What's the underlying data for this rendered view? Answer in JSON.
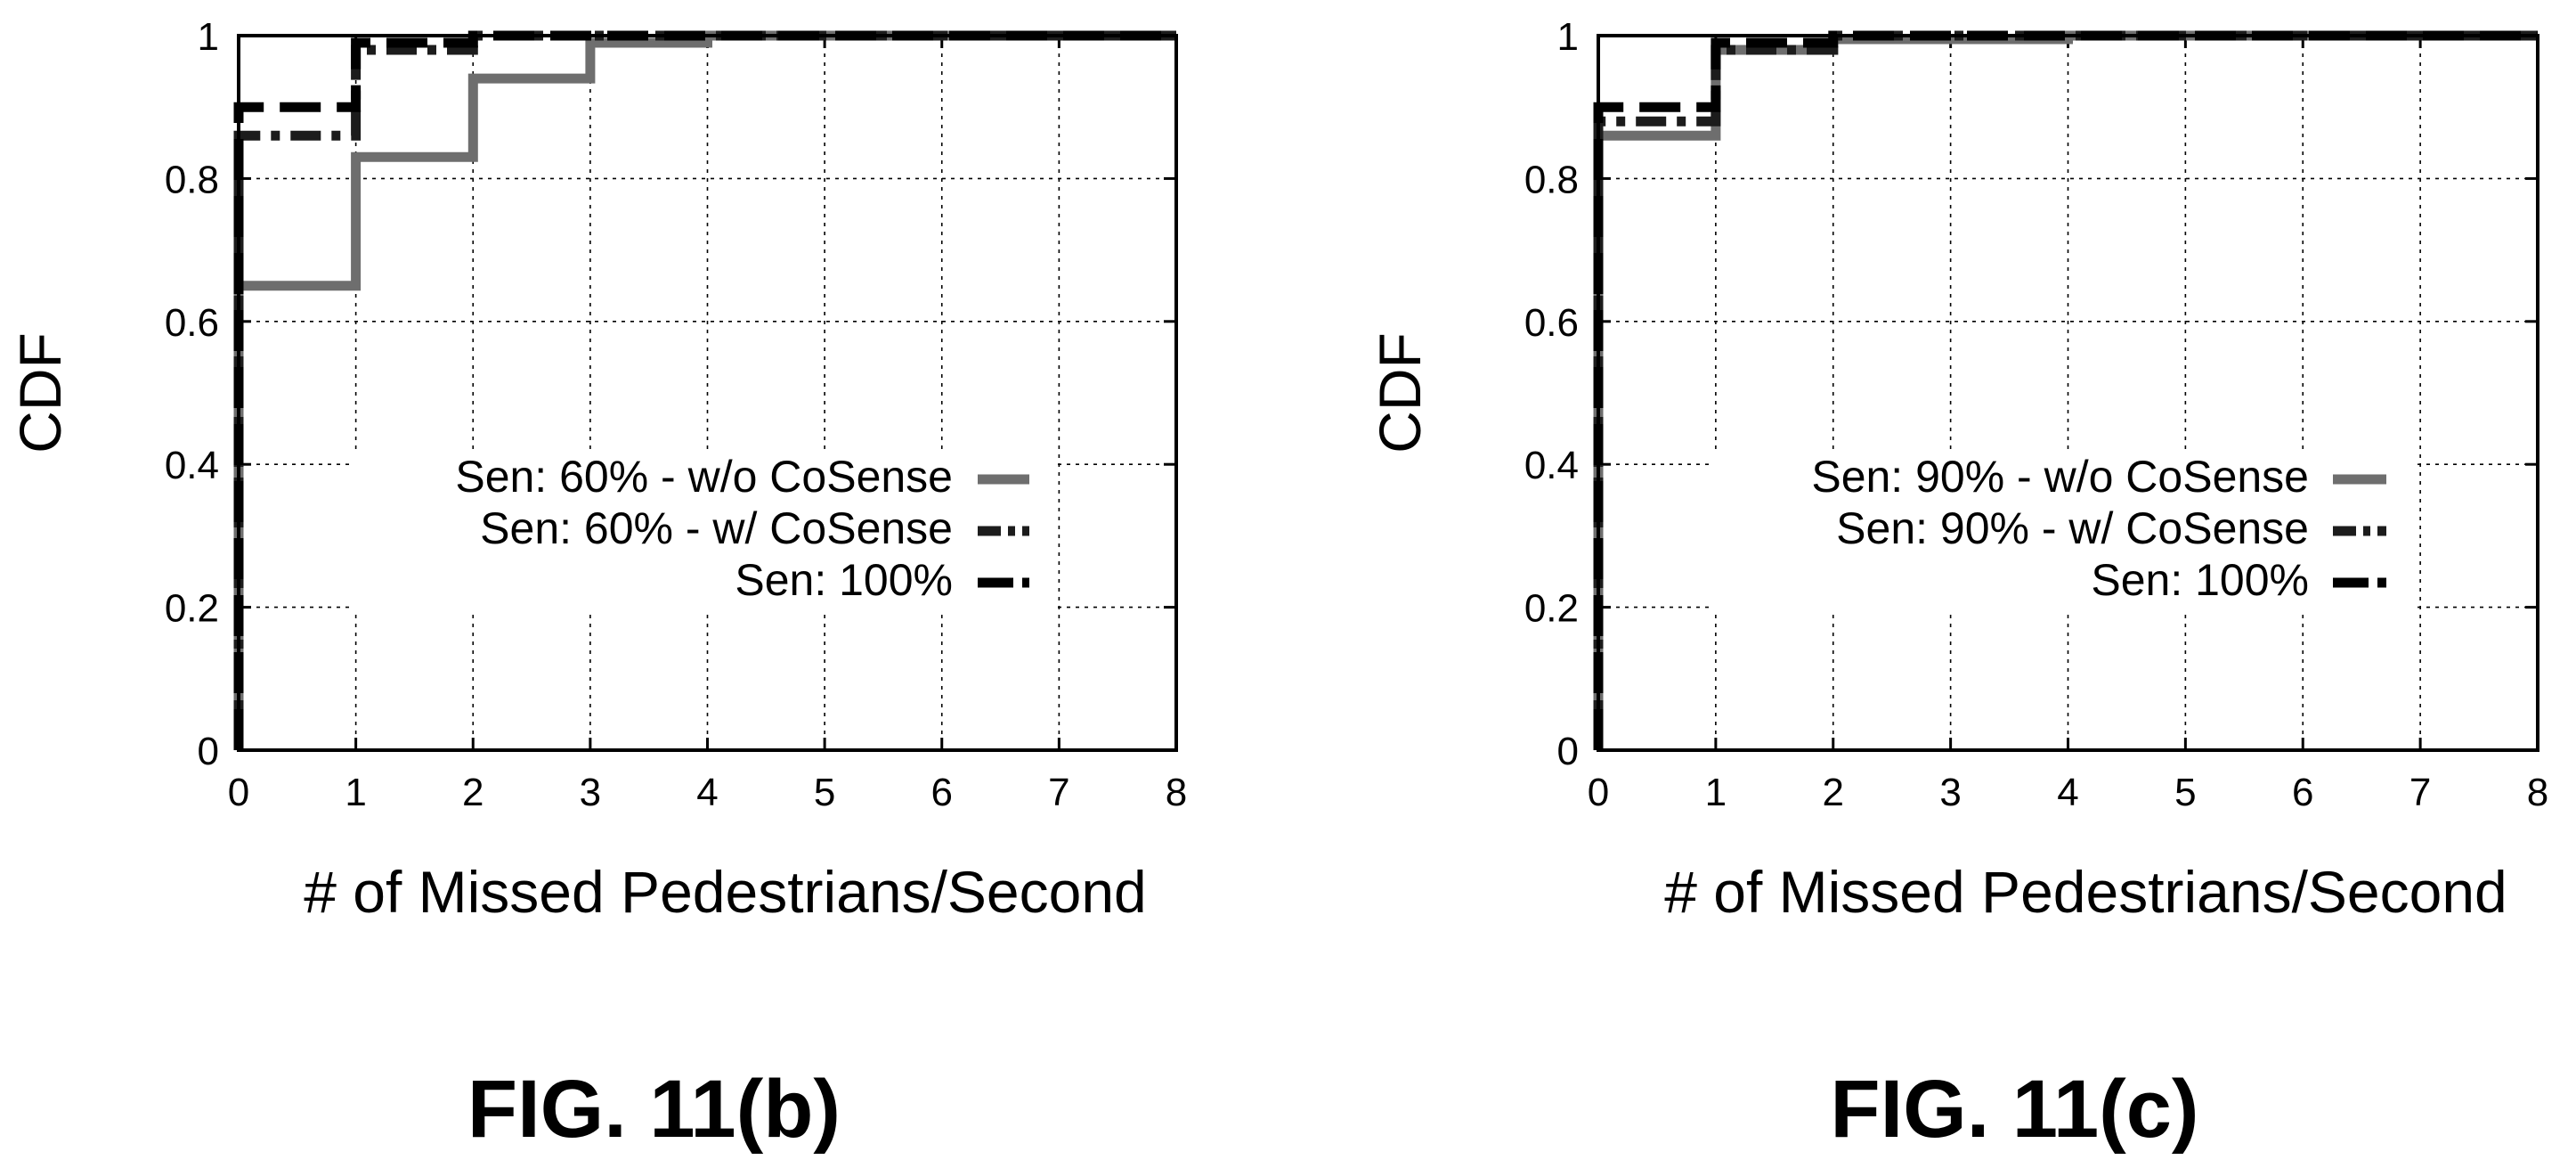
{
  "chart_data": [
    {
      "type": "line",
      "step": true,
      "caption": "FIG. 11(b)",
      "xlabel": "# of Missed Pedestrians/Second",
      "ylabel": "CDF",
      "xlim": [
        0,
        8
      ],
      "ylim": [
        0,
        1
      ],
      "xticks": [
        "0",
        "1",
        "2",
        "3",
        "4",
        "5",
        "6",
        "7",
        "8"
      ],
      "yticks": [
        "0",
        "0.2",
        "0.4",
        "0.6",
        "0.8",
        "1"
      ],
      "grid": true,
      "legend_position": "center-right",
      "series": [
        {
          "name": "Sen: 60% - w/o CoSense",
          "color": "#6e6e6e",
          "dash": "solid",
          "x": [
            0,
            1,
            2,
            3,
            4,
            8
          ],
          "y": [
            0.65,
            0.83,
            0.94,
            0.99,
            1.0,
            1.0
          ]
        },
        {
          "name": "Sen: 60% - w/ CoSense",
          "color": "#1c1c1c",
          "dash": "dashdot",
          "x": [
            0,
            1,
            2,
            8
          ],
          "y": [
            0.86,
            0.98,
            1.0,
            1.0
          ]
        },
        {
          "name": "Sen: 100%",
          "color": "#000000",
          "dash": "dashed",
          "x": [
            0,
            1,
            2,
            8
          ],
          "y": [
            0.9,
            0.99,
            1.0,
            1.0
          ]
        }
      ]
    },
    {
      "type": "line",
      "step": true,
      "caption": "FIG. 11(c)",
      "xlabel": "# of Missed Pedestrians/Second",
      "ylabel": "CDF",
      "xlim": [
        0,
        8
      ],
      "ylim": [
        0,
        1
      ],
      "xticks": [
        "0",
        "1",
        "2",
        "3",
        "4",
        "5",
        "6",
        "7",
        "8"
      ],
      "yticks": [
        "0",
        "0.2",
        "0.4",
        "0.6",
        "0.8",
        "1"
      ],
      "grid": true,
      "legend_position": "center-right",
      "series": [
        {
          "name": "Sen: 90% - w/o CoSense",
          "color": "#6e6e6e",
          "dash": "solid",
          "x": [
            0,
            1,
            2,
            4,
            8
          ],
          "y": [
            0.86,
            0.98,
            0.995,
            1.0,
            1.0
          ]
        },
        {
          "name": "Sen: 90% - w/ CoSense",
          "color": "#1c1c1c",
          "dash": "dashdot",
          "x": [
            0,
            1,
            2,
            8
          ],
          "y": [
            0.88,
            0.98,
            1.0,
            1.0
          ]
        },
        {
          "name": "Sen: 100%",
          "color": "#000000",
          "dash": "dashed",
          "x": [
            0,
            1,
            2,
            8
          ],
          "y": [
            0.9,
            0.99,
            1.0,
            1.0
          ]
        }
      ]
    }
  ]
}
